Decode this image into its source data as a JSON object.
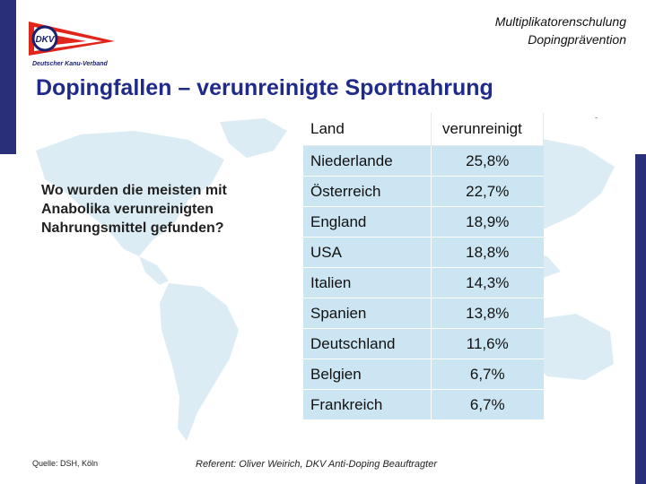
{
  "header": {
    "line1": "Multiplikatorenschulung",
    "line2": "Dopingprävention"
  },
  "logo": {
    "text": "Deutscher Kanu-Verband",
    "mark_text": "DKV",
    "colors": {
      "pennant": "#e0261b",
      "ring": "#1a1f6e"
    }
  },
  "title": "Dopingfallen – verunreinigte Sportnahrung",
  "question": "Wo wurden die meisten mit Anabolika verunreinigten Nahrungsmittel gefunden?",
  "table": {
    "headers": [
      "Land",
      "verunreinigt"
    ],
    "rows": [
      {
        "country": "Niederlande",
        "value": "25,8%"
      },
      {
        "country": "Österreich",
        "value": "22,7%"
      },
      {
        "country": "England",
        "value": "18,9%"
      },
      {
        "country": "USA",
        "value": "18,8%"
      },
      {
        "country": "Italien",
        "value": "14,3%"
      },
      {
        "country": "Spanien",
        "value": "13,8%"
      },
      {
        "country": "Deutschland",
        "value": "11,6%"
      },
      {
        "country": "Belgien",
        "value": "6,7%"
      },
      {
        "country": "Frankreich",
        "value": "6,7%"
      }
    ]
  },
  "footer": {
    "source": "Quelle: DSH, Köln",
    "referent": "Referent: Oliver Weirich, DKV Anti-Doping Beauftragter"
  },
  "colors": {
    "accent_bar": "#2a2f7a",
    "title": "#1f2a8a",
    "table_cell": "#cbe6f2",
    "map": "#dcecf4"
  }
}
